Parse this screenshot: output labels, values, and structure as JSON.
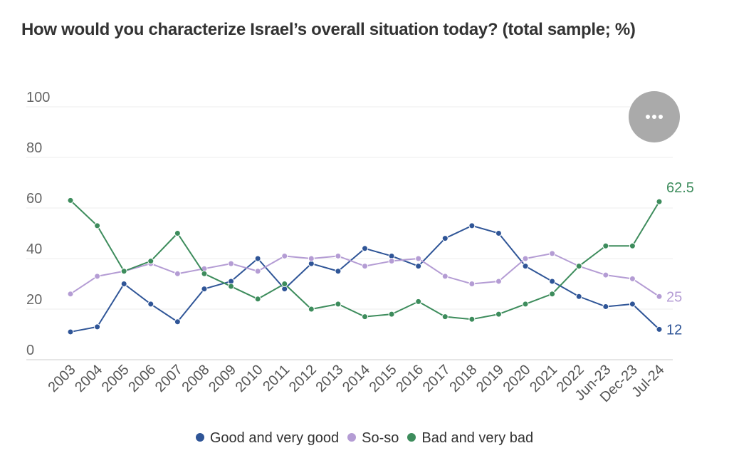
{
  "chart_data": {
    "type": "line",
    "title": "How would you characterize Israel’s overall situation today? (total sample; %)",
    "categories": [
      "2003",
      "2004",
      "2005",
      "2006",
      "2007",
      "2008",
      "2009",
      "2010",
      "2011",
      "2012",
      "2013",
      "2014",
      "2015",
      "2016",
      "2017",
      "2018",
      "2019",
      "2020",
      "2021",
      "2022",
      "Jun-23",
      "Dec-23",
      "Jul-24"
    ],
    "series": [
      {
        "name": "Good and very good",
        "color": "#2f5597",
        "values": [
          11,
          13,
          30,
          22,
          15,
          28,
          31,
          40,
          28,
          38,
          35,
          44,
          41,
          37,
          48,
          53,
          50,
          37,
          31,
          25,
          21,
          22,
          12
        ],
        "end_label": "12"
      },
      {
        "name": "So-so",
        "color": "#b49cd4",
        "values": [
          26,
          33,
          35,
          38,
          34,
          36,
          38,
          35,
          41,
          40,
          41,
          37,
          39,
          40,
          33,
          30,
          31,
          40,
          42,
          37,
          33.5,
          32,
          25
        ],
        "end_label": "25"
      },
      {
        "name": "Bad and very bad",
        "color": "#3d8c5c",
        "values": [
          63,
          53,
          35,
          39,
          50,
          34,
          29,
          24,
          30,
          20,
          22,
          17,
          18,
          23,
          17,
          16,
          18,
          22,
          26,
          37,
          45,
          45,
          62.5
        ],
        "end_label": "62.5"
      }
    ],
    "yticks": [
      "0",
      "20",
      "40",
      "60",
      "80",
      "100"
    ],
    "ylim": [
      0,
      100
    ],
    "grid": true,
    "legend_position": "bottom"
  }
}
